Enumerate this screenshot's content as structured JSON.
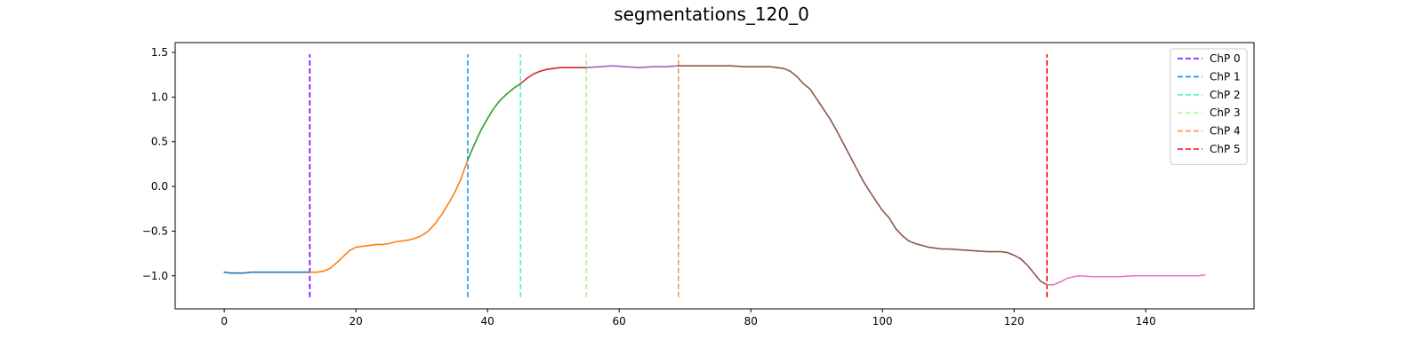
{
  "chart_data": {
    "type": "line",
    "title": "segmentations_120_0",
    "xlabel": "",
    "ylabel": "",
    "xlim": [
      -7.45,
      156.45
    ],
    "ylim": [
      -1.37,
      1.61
    ],
    "xticks": [
      0,
      20,
      40,
      60,
      80,
      100,
      120,
      140
    ],
    "yticks": [
      -1.0,
      -0.5,
      0.0,
      0.5,
      1.0,
      1.5
    ],
    "ytick_labels": [
      "−1.0",
      "−0.5",
      "0.0",
      "0.5",
      "1.0",
      "1.5"
    ],
    "grid": false,
    "legend_position": "upper right",
    "changepoint_line_range": [
      -1.24,
      1.48
    ],
    "changepoints": [
      {
        "name": "ChP 0",
        "x": 13,
        "color": "#8000ff"
      },
      {
        "name": "ChP 1",
        "x": 37,
        "color": "#1996f3"
      },
      {
        "name": "ChP 2",
        "x": 45,
        "color": "#4df3ce"
      },
      {
        "name": "ChP 3",
        "x": 55,
        "color": "#b2f396"
      },
      {
        "name": "ChP 4",
        "x": 69,
        "color": "#ff964f"
      },
      {
        "name": "ChP 5",
        "x": 125,
        "color": "#ff0000"
      }
    ],
    "segments": [
      {
        "color": "#1f77b4",
        "x": [
          0,
          1,
          2,
          3,
          4,
          5,
          6,
          7,
          8,
          9,
          10,
          11,
          12,
          13
        ],
        "y": [
          -0.96,
          -0.97,
          -0.97,
          -0.97,
          -0.96,
          -0.96,
          -0.96,
          -0.96,
          -0.96,
          -0.96,
          -0.96,
          -0.96,
          -0.96,
          -0.96
        ]
      },
      {
        "color": "#ff7f0e",
        "x": [
          13,
          14,
          15,
          16,
          17,
          18,
          19,
          20,
          21,
          22,
          23,
          24,
          25,
          26,
          27,
          28,
          29,
          30,
          31,
          32,
          33,
          34,
          35,
          36,
          37
        ],
        "y": [
          -0.96,
          -0.96,
          -0.95,
          -0.92,
          -0.86,
          -0.79,
          -0.72,
          -0.68,
          -0.67,
          -0.66,
          -0.65,
          -0.65,
          -0.64,
          -0.62,
          -0.61,
          -0.6,
          -0.58,
          -0.55,
          -0.5,
          -0.42,
          -0.32,
          -0.2,
          -0.07,
          0.09,
          0.3
        ]
      },
      {
        "color": "#2ca02c",
        "x": [
          37,
          38,
          39,
          40,
          41,
          42,
          43,
          44,
          45
        ],
        "y": [
          0.3,
          0.47,
          0.63,
          0.76,
          0.88,
          0.97,
          1.04,
          1.1,
          1.15
        ]
      },
      {
        "color": "#d62728",
        "x": [
          45,
          46,
          47,
          48,
          49,
          50,
          51,
          52,
          53,
          54,
          55
        ],
        "y": [
          1.15,
          1.21,
          1.26,
          1.29,
          1.31,
          1.32,
          1.33,
          1.33,
          1.33,
          1.33,
          1.33
        ]
      },
      {
        "color": "#9467bd",
        "x": [
          55,
          57,
          59,
          61,
          63,
          65,
          67,
          69
        ],
        "y": [
          1.33,
          1.34,
          1.35,
          1.34,
          1.33,
          1.34,
          1.34,
          1.35
        ]
      },
      {
        "color": "#8c564b",
        "x": [
          69,
          71,
          73,
          75,
          77,
          79,
          81,
          83,
          85,
          86,
          87,
          88,
          89,
          90,
          91,
          92,
          93,
          94,
          95,
          96,
          97,
          98,
          99,
          100,
          101,
          102,
          103,
          104,
          105,
          106,
          107,
          108,
          109,
          110,
          112,
          114,
          116,
          118,
          119,
          120,
          121,
          122,
          123,
          124,
          125
        ],
        "y": [
          1.35,
          1.35,
          1.35,
          1.35,
          1.35,
          1.34,
          1.34,
          1.34,
          1.32,
          1.29,
          1.23,
          1.15,
          1.09,
          0.98,
          0.87,
          0.76,
          0.63,
          0.49,
          0.35,
          0.21,
          0.07,
          -0.05,
          -0.16,
          -0.27,
          -0.35,
          -0.47,
          -0.55,
          -0.61,
          -0.64,
          -0.66,
          -0.68,
          -0.69,
          -0.7,
          -0.7,
          -0.71,
          -0.72,
          -0.73,
          -0.73,
          -0.74,
          -0.77,
          -0.81,
          -0.88,
          -0.97,
          -1.06,
          -1.1
        ]
      },
      {
        "color": "#e377c2",
        "x": [
          125,
          126,
          127,
          128,
          129,
          130,
          132,
          134,
          136,
          138,
          140,
          142,
          144,
          146,
          148,
          149
        ],
        "y": [
          -1.1,
          -1.1,
          -1.07,
          -1.03,
          -1.01,
          -1.0,
          -1.01,
          -1.01,
          -1.01,
          -1.0,
          -1.0,
          -1.0,
          -1.0,
          -1.0,
          -1.0,
          -0.99
        ]
      }
    ]
  }
}
